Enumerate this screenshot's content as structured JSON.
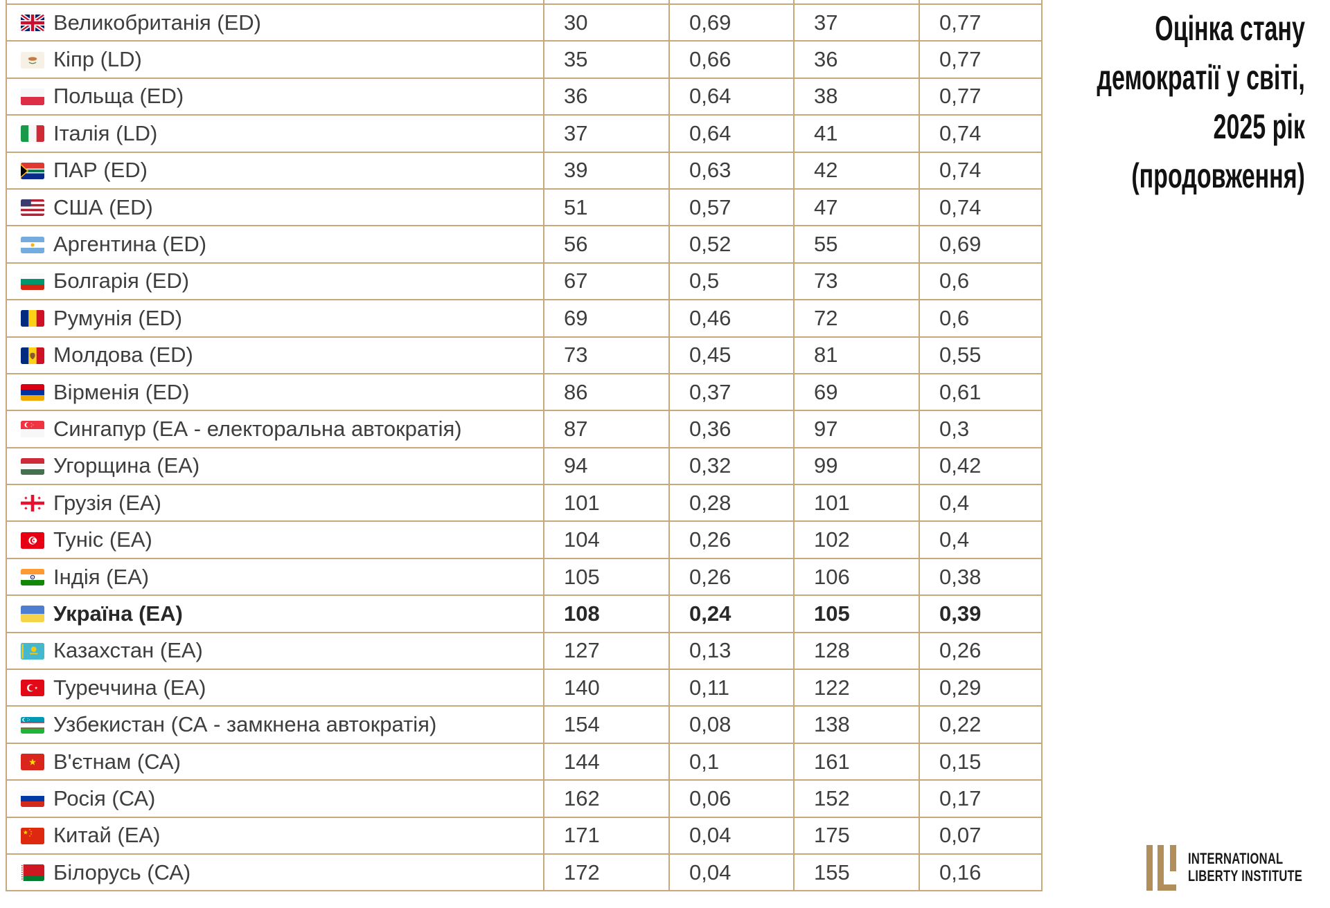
{
  "page_title": {
    "lines": [
      "Оцінка стану",
      "демократії у світі,",
      "2025 рік",
      "(продовження)"
    ]
  },
  "logo": {
    "monogram": "ILI",
    "line1": "INTERNATIONAL",
    "line2": "LIBERTY INSTITUTE"
  },
  "colors": {
    "table_border": "#c6a87d",
    "text": "#3e3e3e",
    "bold_text": "#282828",
    "logo_gold": "#b28e5a",
    "title_text": "#121212"
  },
  "table": {
    "rows": [
      {
        "country": "Великобританія (ED)",
        "code": "gb",
        "values": [
          "30",
          "0,69",
          "37",
          "0,77"
        ],
        "bold": false
      },
      {
        "country": "Кіпр (LD)",
        "code": "cy",
        "values": [
          "35",
          "0,66",
          "36",
          "0,77"
        ],
        "bold": false
      },
      {
        "country": "Польща (ED)",
        "code": "pl",
        "values": [
          "36",
          "0,64",
          "38",
          "0,77"
        ],
        "bold": false
      },
      {
        "country": "Італія (LD)",
        "code": "it",
        "values": [
          "37",
          "0,64",
          "41",
          "0,74"
        ],
        "bold": false
      },
      {
        "country": "ПАР (ED)",
        "code": "za",
        "values": [
          "39",
          "0,63",
          "42",
          "0,74"
        ],
        "bold": false
      },
      {
        "country": "США (ED)",
        "code": "us",
        "values": [
          "51",
          "0,57",
          "47",
          "0,74"
        ],
        "bold": false
      },
      {
        "country": "Аргентина (ED)",
        "code": "ar",
        "values": [
          "56",
          "0,52",
          "55",
          "0,69"
        ],
        "bold": false
      },
      {
        "country": "Болгарія (ED)",
        "code": "bg",
        "values": [
          "67",
          "0,5",
          "73",
          "0,6"
        ],
        "bold": false
      },
      {
        "country": "Румунія (ED)",
        "code": "ro",
        "values": [
          "69",
          "0,46",
          "72",
          "0,6"
        ],
        "bold": false
      },
      {
        "country": "Молдова (ED)",
        "code": "md",
        "values": [
          "73",
          "0,45",
          "81",
          "0,55"
        ],
        "bold": false
      },
      {
        "country": "Вірменія (ED)",
        "code": "am",
        "values": [
          "86",
          "0,37",
          "69",
          "0,61"
        ],
        "bold": false
      },
      {
        "country": "Сингапур (ЕА - електоральна автократія)",
        "code": "sg",
        "values": [
          "87",
          "0,36",
          "97",
          "0,3"
        ],
        "bold": false
      },
      {
        "country": "Угорщина (ЕА)",
        "code": "hu",
        "values": [
          "94",
          "0,32",
          "99",
          "0,42"
        ],
        "bold": false
      },
      {
        "country": "Грузія (ЕА)",
        "code": "ge",
        "values": [
          "101",
          "0,28",
          "101",
          "0,4"
        ],
        "bold": false
      },
      {
        "country": "Туніс (ЕА)",
        "code": "tn",
        "values": [
          "104",
          "0,26",
          "102",
          "0,4"
        ],
        "bold": false
      },
      {
        "country": "Індія (ЕА)",
        "code": "in",
        "values": [
          "105",
          "0,26",
          "106",
          "0,38"
        ],
        "bold": false
      },
      {
        "country": "Україна (ЕА)",
        "code": "ua",
        "values": [
          "108",
          "0,24",
          "105",
          "0,39"
        ],
        "bold": true
      },
      {
        "country": "Казахстан (ЕА)",
        "code": "kz",
        "values": [
          "127",
          "0,13",
          "128",
          "0,26"
        ],
        "bold": false
      },
      {
        "country": "Туреччина (ЕА)",
        "code": "tr",
        "values": [
          "140",
          "0,11",
          "122",
          "0,29"
        ],
        "bold": false
      },
      {
        "country": "Узбекистан (СА - замкнена автократія)",
        "code": "uz",
        "values": [
          "154",
          "0,08",
          "138",
          "0,22"
        ],
        "bold": false
      },
      {
        "country": "В'єтнам (СА)",
        "code": "vn",
        "values": [
          "144",
          "0,1",
          "161",
          "0,15"
        ],
        "bold": false
      },
      {
        "country": "Росія (СА)",
        "code": "ru",
        "values": [
          "162",
          "0,06",
          "152",
          "0,17"
        ],
        "bold": false
      },
      {
        "country": "Китай (ЕА)",
        "code": "cn",
        "values": [
          "171",
          "0,04",
          "175",
          "0,07"
        ],
        "bold": false
      },
      {
        "country": "Білорусь (СА)",
        "code": "by",
        "values": [
          "172",
          "0,04",
          "155",
          "0,16"
        ],
        "bold": false
      }
    ]
  },
  "chart_data": {
    "type": "table",
    "title": "Оцінка стану демократії у світі, 2025 рік (продовження)",
    "highlighted_row": "Україна (ЕА)",
    "rows": [
      [
        "Великобританія (ED)",
        "30",
        "0,69",
        "37",
        "0,77"
      ],
      [
        "Кіпр (LD)",
        "35",
        "0,66",
        "36",
        "0,77"
      ],
      [
        "Польща (ED)",
        "36",
        "0,64",
        "38",
        "0,77"
      ],
      [
        "Італія (LD)",
        "37",
        "0,64",
        "41",
        "0,74"
      ],
      [
        "ПАР (ED)",
        "39",
        "0,63",
        "42",
        "0,74"
      ],
      [
        "США (ED)",
        "51",
        "0,57",
        "47",
        "0,74"
      ],
      [
        "Аргентина (ED)",
        "56",
        "0,52",
        "55",
        "0,69"
      ],
      [
        "Болгарія (ED)",
        "67",
        "0,5",
        "73",
        "0,6"
      ],
      [
        "Румунія (ED)",
        "69",
        "0,46",
        "72",
        "0,6"
      ],
      [
        "Молдова (ED)",
        "73",
        "0,45",
        "81",
        "0,55"
      ],
      [
        "Вірменія (ED)",
        "86",
        "0,37",
        "69",
        "0,61"
      ],
      [
        "Сингапур (ЕА - електоральна автократія)",
        "87",
        "0,36",
        "97",
        "0,3"
      ],
      [
        "Угорщина (ЕА)",
        "94",
        "0,32",
        "99",
        "0,42"
      ],
      [
        "Грузія (ЕА)",
        "101",
        "0,28",
        "101",
        "0,4"
      ],
      [
        "Туніс (ЕА)",
        "104",
        "0,26",
        "102",
        "0,4"
      ],
      [
        "Індія (ЕА)",
        "105",
        "0,26",
        "106",
        "0,38"
      ],
      [
        "Україна (ЕА)",
        "108",
        "0,24",
        "105",
        "0,39"
      ],
      [
        "Казахстан (ЕА)",
        "127",
        "0,13",
        "128",
        "0,26"
      ],
      [
        "Туреччина (ЕА)",
        "140",
        "0,11",
        "122",
        "0,29"
      ],
      [
        "Узбекистан (СА - замкнена автократія)",
        "154",
        "0,08",
        "138",
        "0,22"
      ],
      [
        "В'єтнам (СА)",
        "144",
        "0,1",
        "161",
        "0,15"
      ],
      [
        "Росія (СА)",
        "162",
        "0,06",
        "152",
        "0,17"
      ],
      [
        "Китай (ЕА)",
        "171",
        "0,04",
        "175",
        "0,07"
      ],
      [
        "Білорусь (СА)",
        "172",
        "0,04",
        "155",
        "0,16"
      ]
    ]
  }
}
